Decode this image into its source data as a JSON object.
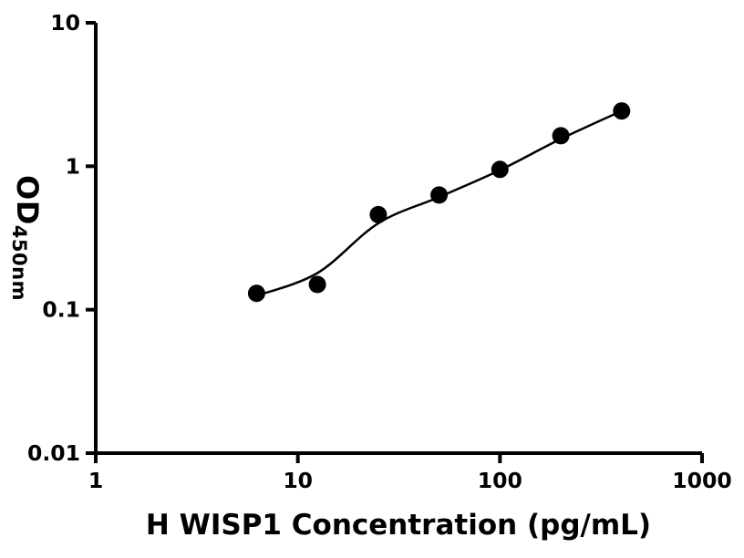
{
  "chart_data": {
    "type": "scatter",
    "title": "",
    "xlabel": "H WISP1 Concentration (pg/mL)",
    "ylabel": "OD450nm",
    "ylabel_main": "OD",
    "ylabel_sub": "450nm",
    "x_scale": "log",
    "y_scale": "log",
    "xlim": [
      1,
      1000
    ],
    "ylim": [
      0.01,
      10
    ],
    "x_ticks": [
      1,
      10,
      100,
      1000
    ],
    "x_tick_labels": [
      "1",
      "10",
      "100",
      "1000"
    ],
    "y_ticks": [
      0.01,
      0.1,
      1,
      10
    ],
    "y_tick_labels": [
      "0.01",
      "0.1",
      "1",
      "10"
    ],
    "grid": false,
    "legend": false,
    "axis_color": "#000000",
    "line_color": "#000000",
    "marker": {
      "shape": "circle",
      "radius": 9.5,
      "color": "#000000"
    },
    "points": [
      {
        "x": 6.25,
        "y": 0.13
      },
      {
        "x": 12.5,
        "y": 0.15
      },
      {
        "x": 25,
        "y": 0.46
      },
      {
        "x": 50,
        "y": 0.63
      },
      {
        "x": 100,
        "y": 0.95
      },
      {
        "x": 200,
        "y": 1.63
      },
      {
        "x": 400,
        "y": 2.43
      }
    ],
    "curve": [
      {
        "x": 6.25,
        "y": 0.125
      },
      {
        "x": 12.5,
        "y": 0.18
      },
      {
        "x": 25,
        "y": 0.4
      },
      {
        "x": 50,
        "y": 0.61
      },
      {
        "x": 100,
        "y": 0.94
      },
      {
        "x": 200,
        "y": 1.55
      },
      {
        "x": 400,
        "y": 2.43
      }
    ]
  }
}
